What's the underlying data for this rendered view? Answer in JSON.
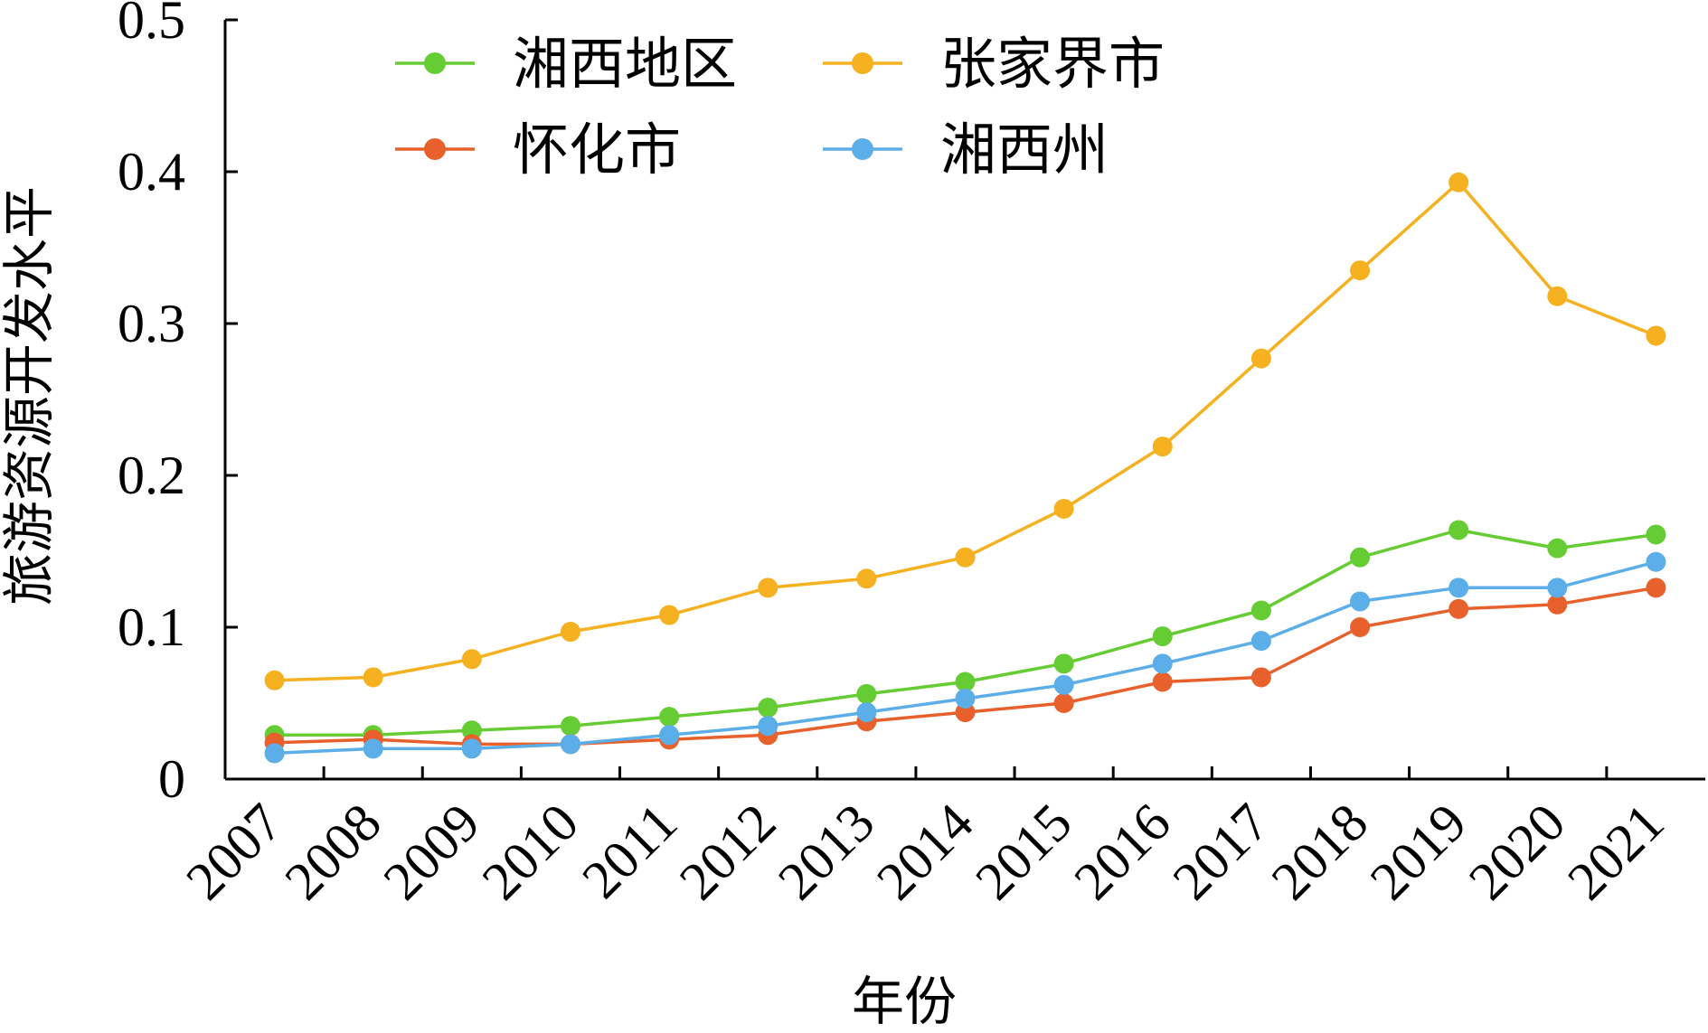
{
  "chart_data": {
    "type": "line",
    "title": "",
    "xlabel": "年份",
    "ylabel": "旅游资源开发水平",
    "ylim": [
      0,
      0.5
    ],
    "yticks": [
      "0",
      "0.1",
      "0.2",
      "0.3",
      "0.4",
      "0.5"
    ],
    "categories": [
      "2007",
      "2008",
      "2009",
      "2010",
      "2011",
      "2012",
      "2013",
      "2014",
      "2015",
      "2016",
      "2017",
      "2018",
      "2019",
      "2020",
      "2021"
    ],
    "series": [
      {
        "name": "湘西地区",
        "color": "#66cc33",
        "values": [
          0.029,
          0.029,
          0.032,
          0.035,
          0.041,
          0.047,
          0.056,
          0.064,
          0.076,
          0.094,
          0.111,
          0.146,
          0.164,
          0.152,
          0.161
        ]
      },
      {
        "name": "张家界市",
        "color": "#f5b120",
        "values": [
          0.065,
          0.067,
          0.079,
          0.097,
          0.108,
          0.126,
          0.132,
          0.146,
          0.178,
          0.219,
          0.277,
          0.335,
          0.393,
          0.318,
          0.292
        ]
      },
      {
        "name": "怀化市",
        "color": "#e8612c",
        "values": [
          0.024,
          0.026,
          0.023,
          0.023,
          0.026,
          0.029,
          0.038,
          0.044,
          0.05,
          0.064,
          0.067,
          0.1,
          0.112,
          0.115,
          0.126
        ]
      },
      {
        "name": "湘西州",
        "color": "#5baee8",
        "values": [
          0.017,
          0.02,
          0.02,
          0.023,
          0.029,
          0.035,
          0.044,
          0.053,
          0.062,
          0.076,
          0.091,
          0.117,
          0.126,
          0.126,
          0.143
        ]
      }
    ],
    "legend": {
      "placement": "top-left",
      "columns": 2
    },
    "grid": false
  }
}
